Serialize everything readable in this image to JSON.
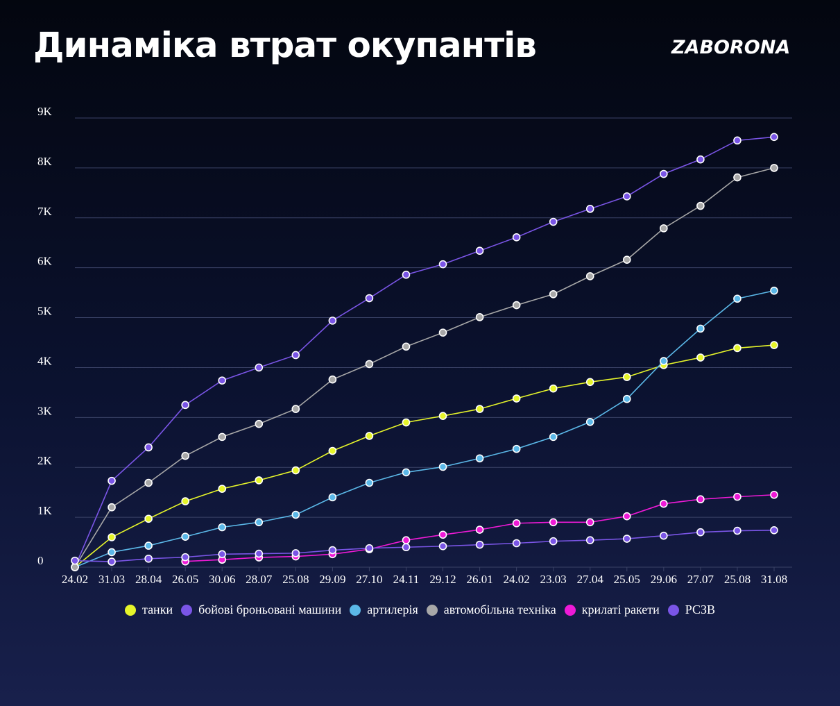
{
  "header": {
    "title": "Динаміка втрат окупантів",
    "logo": "ZABORONA"
  },
  "chart_data": {
    "type": "line",
    "title": "Динаміка втрат окупантів",
    "xlabel": "",
    "ylabel": "",
    "x": [
      "24.02",
      "31.03",
      "28.04",
      "26.05",
      "30.06",
      "28.07",
      "25.08",
      "29.09",
      "27.10",
      "24.11",
      "29.12",
      "26.01",
      "24.02",
      "23.03",
      "27.04",
      "25.05",
      "29.06",
      "27.07",
      "25.08",
      "31.08"
    ],
    "yticks": [
      "0",
      "1K",
      "2K",
      "3K",
      "4K",
      "5K",
      "6K",
      "7K",
      "8K",
      "9K"
    ],
    "ylim": [
      0,
      9000
    ],
    "grid": true,
    "legend_position": "bottom",
    "series": [
      {
        "name": "танки",
        "color": "#e6f52a",
        "values": [
          0,
          600,
          970,
          1320,
          1570,
          1740,
          1940,
          2330,
          2630,
          2900,
          3030,
          3170,
          3380,
          3580,
          3710,
          3810,
          4050,
          4200,
          4390,
          4450
        ]
      },
      {
        "name": "бойові броньовані машини",
        "color": "#7a55e6",
        "values": [
          0,
          1730,
          2400,
          3250,
          3740,
          4000,
          4250,
          4940,
          5390,
          5860,
          6070,
          6340,
          6610,
          6920,
          7180,
          7430,
          7880,
          8170,
          8550,
          8620
        ]
      },
      {
        "name": "артилерія",
        "color": "#5bb8e8",
        "values": [
          0,
          300,
          430,
          610,
          800,
          900,
          1050,
          1400,
          1690,
          1900,
          2010,
          2180,
          2370,
          2610,
          2910,
          3370,
          4130,
          4780,
          5380,
          5540
        ]
      },
      {
        "name": "автомобільна техніка",
        "color": "#a8a8a8",
        "values": [
          0,
          1200,
          1690,
          2230,
          2610,
          2870,
          3170,
          3760,
          4070,
          4420,
          4700,
          5010,
          5250,
          5470,
          5830,
          6160,
          6790,
          7240,
          7810,
          8000
        ]
      },
      {
        "name": "крилаті ракети",
        "color": "#ee1ad6",
        "values": [
          null,
          null,
          null,
          115,
          150,
          195,
          215,
          260,
          360,
          540,
          650,
          750,
          880,
          900,
          900,
          1020,
          1270,
          1360,
          1410,
          1450
        ]
      },
      {
        "name": "РСЗВ",
        "color": "#7a55e6",
        "values": [
          130,
          110,
          170,
          200,
          260,
          270,
          280,
          340,
          380,
          400,
          420,
          450,
          480,
          520,
          540,
          570,
          630,
          700,
          730,
          740
        ]
      }
    ]
  }
}
